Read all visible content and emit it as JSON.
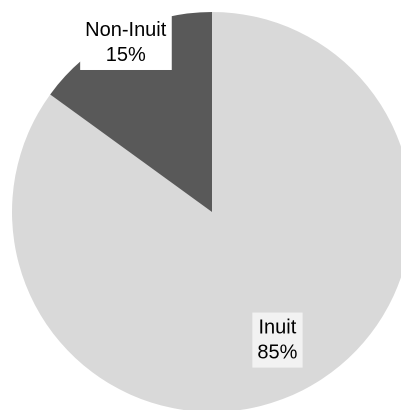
{
  "chart_data": {
    "type": "pie",
    "categories": [
      "Inuit",
      "Non-Inuit"
    ],
    "values": [
      85,
      15
    ],
    "value_labels": [
      "85%",
      "15%"
    ],
    "colors": [
      "#d9d9d9",
      "#595959"
    ]
  }
}
